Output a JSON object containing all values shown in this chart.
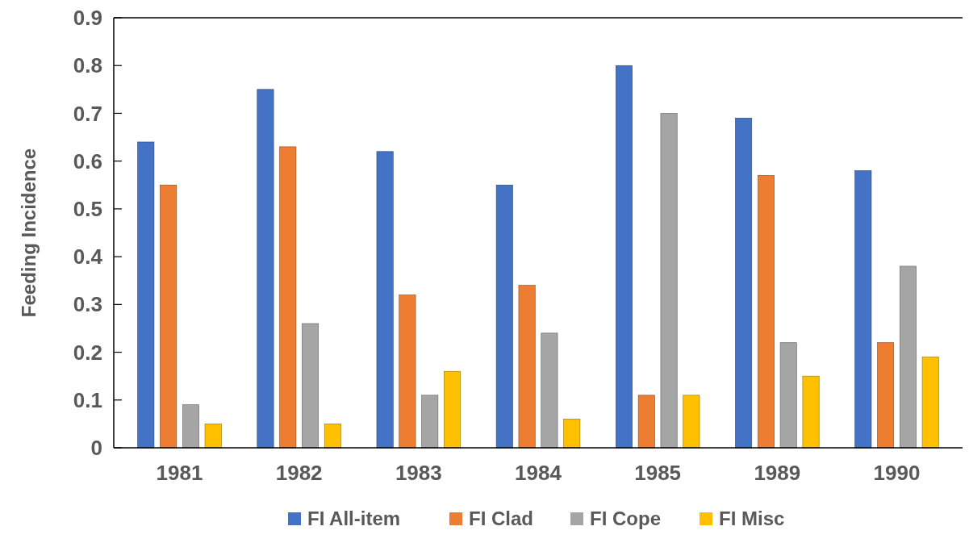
{
  "chart_data": {
    "type": "bar",
    "ylabel": "Feeding Incidence",
    "categories": [
      "1981",
      "1982",
      "1983",
      "1984",
      "1985",
      "1989",
      "1990"
    ],
    "series": [
      {
        "name": "FI All-item",
        "color": "#4472c4",
        "values": [
          0.64,
          0.75,
          0.62,
          0.55,
          0.8,
          0.69,
          0.58
        ]
      },
      {
        "name": "FI Clad",
        "color": "#ed7d31",
        "values": [
          0.55,
          0.63,
          0.32,
          0.34,
          0.11,
          0.57,
          0.22
        ]
      },
      {
        "name": "FI Cope",
        "color": "#a5a5a5",
        "values": [
          0.09,
          0.26,
          0.11,
          0.24,
          0.7,
          0.22,
          0.38
        ]
      },
      {
        "name": "FI Misc",
        "color": "#ffc000",
        "values": [
          0.05,
          0.05,
          0.16,
          0.06,
          0.11,
          0.15,
          0.19
        ]
      }
    ],
    "ylim": [
      0,
      0.9
    ],
    "yticks": [
      0,
      0.1,
      0.2,
      0.3,
      0.4,
      0.5,
      0.6,
      0.7,
      0.8,
      0.9
    ],
    "legend": "bottom"
  }
}
